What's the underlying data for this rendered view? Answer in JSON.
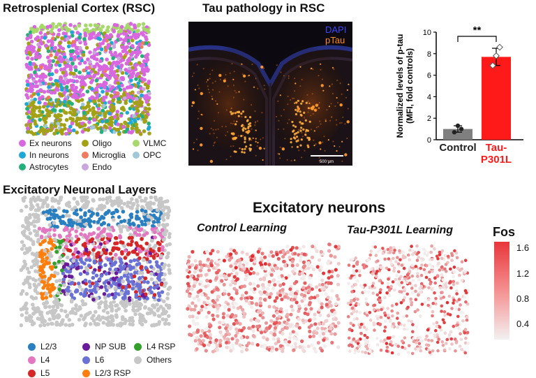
{
  "panelA": {
    "title": "Retrosplenial Cortex (RSC)",
    "legend": [
      {
        "label": "Ex neurons",
        "color": "#d867e0"
      },
      {
        "label": "Oligo",
        "color": "#a3a116"
      },
      {
        "label": "VLMC",
        "color": "#a6d96a"
      },
      {
        "label": "In neurons",
        "color": "#1fa8d6"
      },
      {
        "label": "Microglia",
        "color": "#ef7a5e"
      },
      {
        "label": "OPC",
        "color": "#9fc9d8"
      },
      {
        "label": "Astrocytes",
        "color": "#23b07b"
      },
      {
        "label": "Endo",
        "color": "#c9a6dd"
      }
    ]
  },
  "panelB": {
    "title": "Tau pathology in RSC",
    "channels": [
      {
        "label": "DAPI",
        "color": "#3b47ff"
      },
      {
        "label": "pTau",
        "color": "#ff8a1e"
      }
    ],
    "scalebar": "500 µm"
  },
  "panelC": {
    "significance": "**",
    "chart_data": {
      "type": "bar",
      "categories": [
        "Control",
        "Tau-P301L"
      ],
      "category_display": [
        [
          "Control"
        ],
        [
          "Tau-",
          "P301L"
        ]
      ],
      "values": [
        1.0,
        7.7
      ],
      "errors": [
        0.3,
        0.8
      ],
      "points": [
        [
          0.7,
          1.3,
          1.0
        ],
        [
          6.9,
          7.8,
          8.6
        ]
      ],
      "colors": [
        "#7f7f7f",
        "#ff1a1a"
      ],
      "label_colors": [
        "#222222",
        "#ff1a1a"
      ],
      "ylabel_lines": [
        "Normalized levels of p-tau",
        "(MFI, fold controls)"
      ],
      "ylim": [
        0,
        10
      ],
      "yticks": [
        0,
        2,
        4,
        6,
        8,
        10
      ]
    }
  },
  "panelD": {
    "title": "Excitatory Neuronal Layers",
    "legend": [
      {
        "label": "L2/3",
        "color": "#2a7fc1"
      },
      {
        "label": "NP SUB",
        "color": "#6a1b9a"
      },
      {
        "label": "L4 RSP",
        "color": "#33a02c"
      },
      {
        "label": "L4",
        "color": "#e377c2"
      },
      {
        "label": "L6",
        "color": "#6b72d6"
      },
      {
        "label": "Others",
        "color": "#c7c7c7"
      },
      {
        "label": "L5",
        "color": "#d62728"
      },
      {
        "label": "L2/3 RSP",
        "color": "#ff7f0e"
      }
    ]
  },
  "panelE": {
    "title": "Excitatory neurons",
    "subtitles": [
      "Control Learning",
      "Tau-P301L Learning"
    ],
    "colorbar": {
      "label": "Fos",
      "ticks": [
        "1.6",
        "1.2",
        "0.8",
        "0.4"
      ],
      "range": [
        0.1,
        1.7
      ]
    }
  }
}
